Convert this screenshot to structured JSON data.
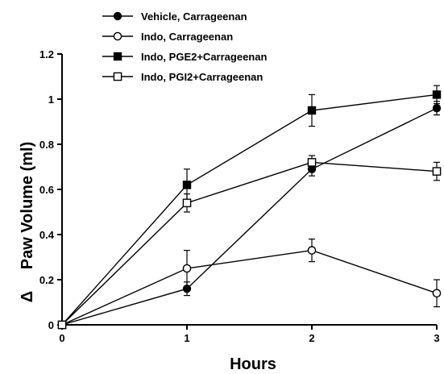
{
  "chart_data": {
    "type": "line",
    "title": "",
    "xlabel": "Hours",
    "ylabel": "Paw Volume (ml)",
    "ylabel_prefix": "Δ",
    "x": [
      0,
      1,
      2,
      3
    ],
    "xlim": [
      0,
      3
    ],
    "ylim": [
      0,
      1.2
    ],
    "xticks": [
      "0",
      "1",
      "2",
      "3"
    ],
    "yticks": [
      "0",
      "0.2",
      "0.4",
      "0.6",
      "0.8",
      "1",
      "1.2"
    ],
    "grid": false,
    "legend_position": "top-left",
    "series": [
      {
        "name": "Vehicle, Carrageenan",
        "marker": "filled-circle",
        "values": [
          0,
          0.16,
          0.69,
          0.96
        ],
        "errors": [
          0,
          0.03,
          0.03,
          0.03
        ]
      },
      {
        "name": "Indo, Carrageenan",
        "marker": "open-circle",
        "values": [
          0,
          0.25,
          0.33,
          0.14
        ],
        "errors": [
          0,
          0.08,
          0.05,
          0.06
        ]
      },
      {
        "name": "Indo, PGE2+Carrageenan",
        "marker": "filled-square",
        "values": [
          0,
          0.62,
          0.95,
          1.02
        ],
        "errors": [
          0,
          0.07,
          0.07,
          0.04
        ]
      },
      {
        "name": "Indo, PGI2+Carrageenan",
        "marker": "open-square",
        "values": [
          0,
          0.54,
          0.72,
          0.68
        ],
        "errors": [
          0,
          0.04,
          0.03,
          0.04
        ]
      }
    ]
  }
}
